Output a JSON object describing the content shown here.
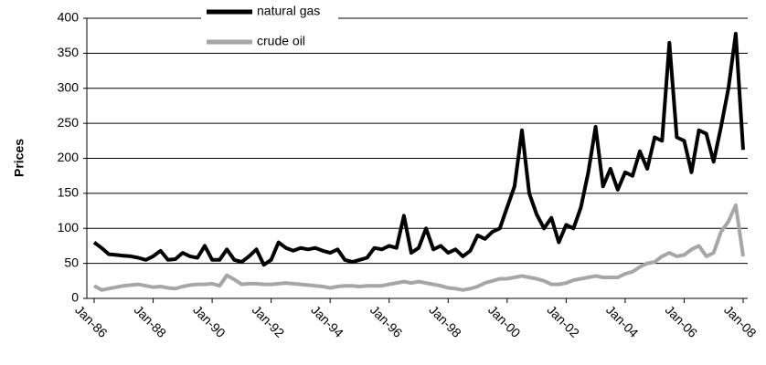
{
  "chart_data": {
    "type": "line",
    "ylabel": "Prices",
    "categories": [
      "Jan-86",
      null,
      null,
      null,
      null,
      null,
      null,
      null,
      "Jan-88",
      null,
      null,
      null,
      null,
      null,
      null,
      null,
      "Jan-90",
      null,
      null,
      null,
      null,
      null,
      null,
      null,
      "Jan-92",
      null,
      null,
      null,
      null,
      null,
      null,
      null,
      "Jan-94",
      null,
      null,
      null,
      null,
      null,
      null,
      null,
      "Jan-96",
      null,
      null,
      null,
      null,
      null,
      null,
      null,
      "Jan-98",
      null,
      null,
      null,
      null,
      null,
      null,
      null,
      "Jan-00",
      null,
      null,
      null,
      null,
      null,
      null,
      null,
      "Jan-02",
      null,
      null,
      null,
      null,
      null,
      null,
      null,
      "Jan-04",
      null,
      null,
      null,
      null,
      null,
      null,
      null,
      "Jan-06",
      null,
      null,
      null,
      null,
      null,
      null,
      null,
      "Jan-08"
    ],
    "series": [
      {
        "name": "natural gas",
        "color": "#000000",
        "values": [
          80,
          72,
          63,
          62,
          61,
          60,
          58,
          55,
          60,
          68,
          55,
          56,
          65,
          60,
          58,
          75,
          55,
          55,
          70,
          55,
          52,
          60,
          70,
          48,
          55,
          80,
          72,
          68,
          72,
          70,
          72,
          68,
          65,
          70,
          55,
          52,
          55,
          58,
          72,
          70,
          75,
          72,
          118,
          65,
          72,
          100,
          70,
          75,
          65,
          70,
          60,
          68,
          90,
          85,
          95,
          100,
          130,
          160,
          240,
          150,
          120,
          100,
          115,
          80,
          105,
          100,
          130,
          180,
          245,
          160,
          185,
          155,
          180,
          175,
          210,
          185,
          230,
          225,
          365,
          230,
          225,
          180,
          240,
          235,
          195,
          245,
          300,
          378,
          212
        ]
      },
      {
        "name": "crude oil",
        "color": "#a6a6a6",
        "values": [
          18,
          12,
          14,
          16,
          18,
          19,
          20,
          18,
          16,
          17,
          15,
          14,
          17,
          19,
          20,
          20,
          21,
          18,
          33,
          27,
          20,
          21,
          21,
          20,
          20,
          21,
          22,
          21,
          20,
          19,
          18,
          17,
          15,
          17,
          18,
          18,
          17,
          18,
          18,
          18,
          20,
          22,
          24,
          22,
          24,
          22,
          20,
          18,
          15,
          14,
          12,
          14,
          17,
          22,
          25,
          28,
          28,
          30,
          32,
          30,
          28,
          25,
          20,
          20,
          22,
          26,
          28,
          30,
          32,
          30,
          30,
          30,
          35,
          38,
          45,
          50,
          52,
          60,
          65,
          60,
          62,
          70,
          75,
          60,
          65,
          95,
          110,
          133,
          60
        ]
      }
    ],
    "ylim": [
      0,
      400
    ],
    "yticks": [
      0,
      50,
      100,
      150,
      200,
      250,
      300,
      350,
      400
    ],
    "grid": true,
    "legend": "top"
  }
}
